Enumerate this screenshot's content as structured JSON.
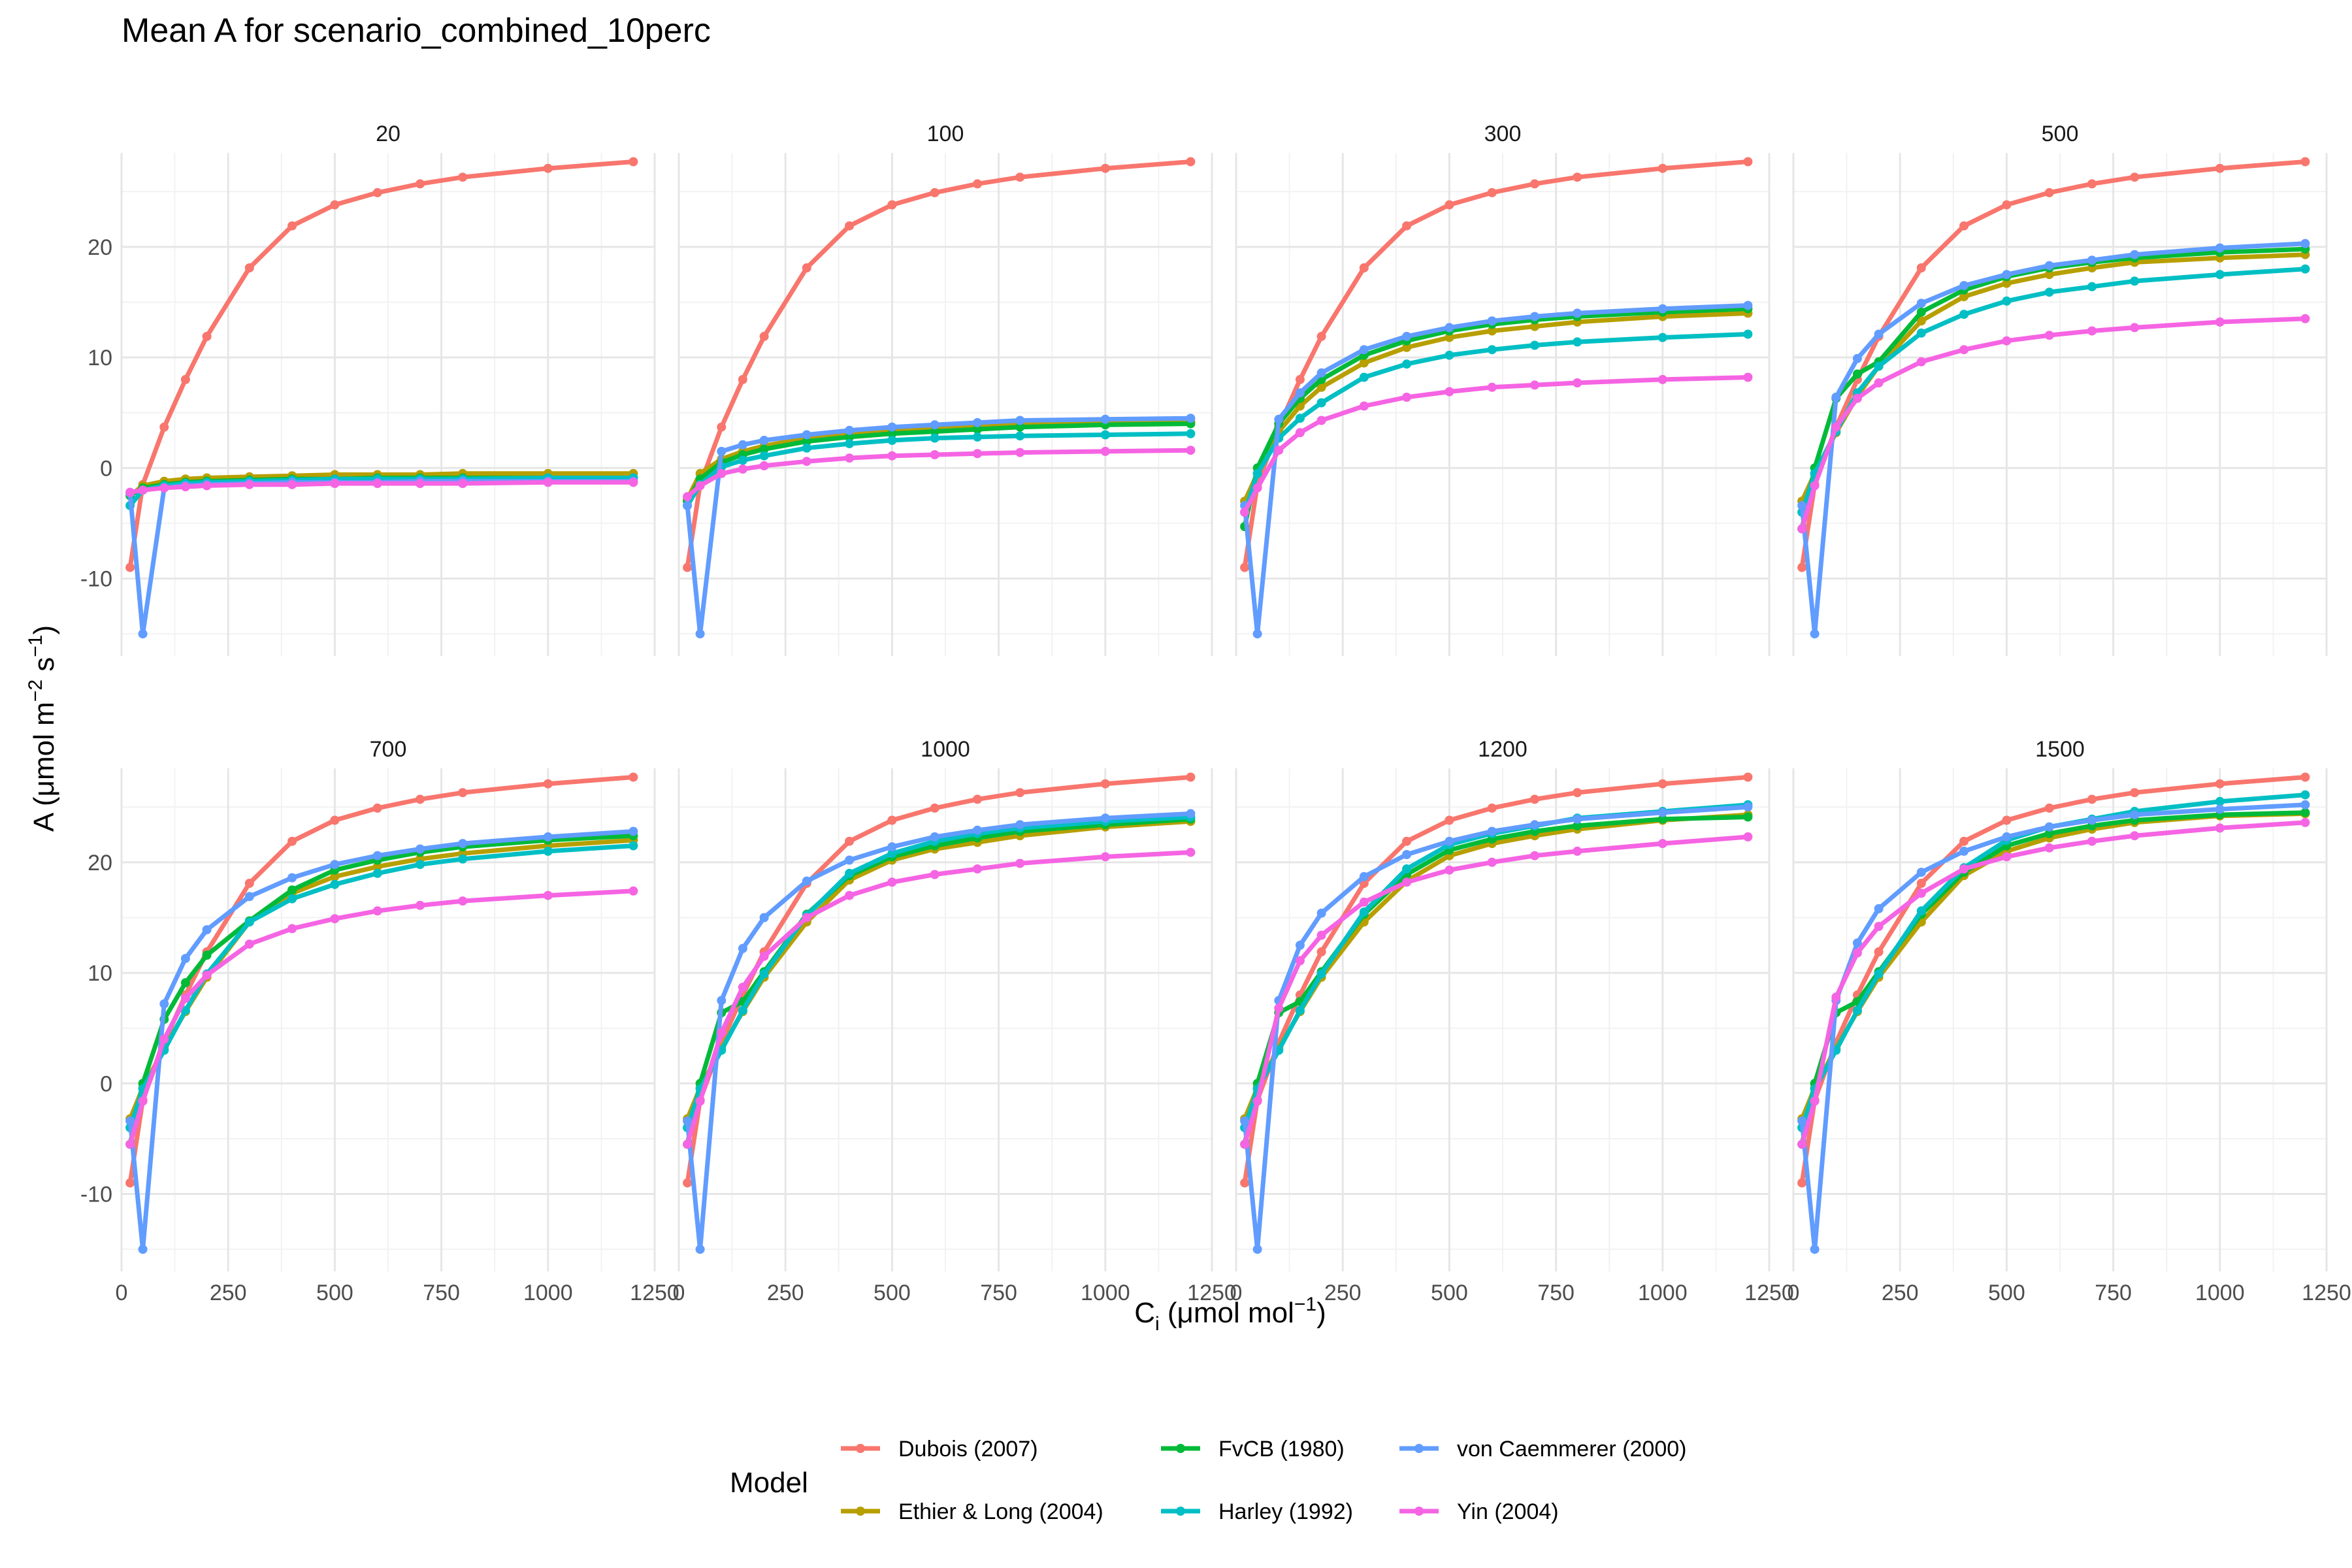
{
  "title": "Mean A for scenario_combined_10perc",
  "legend": {
    "title": "Model"
  },
  "axes": {
    "x_title_main": "C",
    "x_title_sub": "i",
    "x_title_rest": " (μmol mol",
    "x_title_sup": "−1",
    "x_title_end": ")",
    "y_title_main": "A (μmol m",
    "y_title_sup1": "−2",
    "y_title_mid": " s",
    "y_title_sup2": "−1",
    "y_title_end": ")"
  },
  "chart_data": {
    "type": "line",
    "facet_by": "scenario panel",
    "xlim": [
      0,
      1250
    ],
    "ylim": [
      -17,
      28.5
    ],
    "x_ticks": [
      0,
      250,
      500,
      750,
      1000,
      1250
    ],
    "x_tick_labels": [
      "0",
      "250",
      "500",
      "750",
      "1000",
      "1250"
    ],
    "y_ticks": [
      -10,
      0,
      10,
      20
    ],
    "y_tick_labels": [
      "-10",
      "0",
      "10",
      "20"
    ],
    "grid": true,
    "legend_position": "bottom",
    "colors": {
      "Dubois (2007)": "#F8766D",
      "Ethier & Long (2004)": "#B79F00",
      "FvCB (1980)": "#00BA38",
      "Harley (1992)": "#00BFC4",
      "von Caemmerer (2000)": "#619CFF",
      "Yin (2004)": "#F564E3"
    },
    "legend_order": [
      "Dubois (2007)",
      "Ethier & Long (2004)",
      "FvCB (1980)",
      "Harley (1992)",
      "von Caemmerer (2000)",
      "Yin (2004)"
    ],
    "x": [
      20,
      50,
      100,
      150,
      200,
      300,
      400,
      500,
      600,
      700,
      800,
      1000,
      1200
    ],
    "panels": [
      {
        "label": "20",
        "series": [
          {
            "name": "Dubois (2007)",
            "values": [
              -9.0,
              -1.5,
              3.7,
              8.0,
              11.9,
              18.1,
              21.9,
              23.8,
              24.9,
              25.7,
              26.3,
              27.1,
              27.7
            ]
          },
          {
            "name": "Ethier & Long (2004)",
            "values": [
              -2.5,
              -1.6,
              -1.2,
              -1.0,
              -0.9,
              -0.8,
              -0.7,
              -0.6,
              -0.6,
              -0.6,
              -0.5,
              -0.5,
              -0.5
            ]
          },
          {
            "name": "FvCB (1980)",
            "values": [
              -2.5,
              -1.8,
              -1.5,
              -1.3,
              -1.2,
              -1.1,
              -1.0,
              -1.0,
              -0.9,
              -0.9,
              -0.9,
              -0.9,
              -0.9
            ]
          },
          {
            "name": "Harley (1992)",
            "values": [
              -3.4,
              -2.0,
              -1.6,
              -1.4,
              -1.3,
              -1.2,
              -1.1,
              -1.0,
              -1.0,
              -1.0,
              -1.0,
              -0.9,
              -0.9
            ]
          },
          {
            "name": "von Caemmerer (2000)",
            "values": [
              -2.3,
              -15.0,
              -1.8,
              -1.6,
              -1.5,
              -1.4,
              -1.3,
              -1.3,
              -1.3,
              -1.2,
              -1.2,
              -1.2,
              -1.2
            ]
          },
          {
            "name": "Yin (2004)",
            "values": [
              -2.2,
              -2.0,
              -1.8,
              -1.7,
              -1.6,
              -1.5,
              -1.5,
              -1.4,
              -1.4,
              -1.4,
              -1.4,
              -1.3,
              -1.3
            ]
          }
        ]
      },
      {
        "label": "100",
        "series": [
          {
            "name": "Dubois (2007)",
            "values": [
              -9.0,
              -1.5,
              3.7,
              8.0,
              11.9,
              18.1,
              21.9,
              23.8,
              24.9,
              25.7,
              26.3,
              27.1,
              27.7
            ]
          },
          {
            "name": "Ethier & Long (2004)",
            "values": [
              -2.8,
              -0.5,
              0.8,
              1.5,
              2.0,
              2.7,
              3.1,
              3.4,
              3.6,
              3.8,
              3.9,
              4.1,
              4.2
            ]
          },
          {
            "name": "FvCB (1980)",
            "values": [
              -3.0,
              -1.0,
              0.5,
              1.2,
              1.7,
              2.4,
              2.8,
              3.1,
              3.3,
              3.5,
              3.7,
              3.9,
              4.0
            ]
          },
          {
            "name": "Harley (1992)",
            "values": [
              -3.4,
              -1.5,
              0.1,
              0.7,
              1.1,
              1.8,
              2.2,
              2.5,
              2.7,
              2.8,
              2.9,
              3.0,
              3.1
            ]
          },
          {
            "name": "von Caemmerer (2000)",
            "values": [
              -3.4,
              -15.0,
              1.5,
              2.1,
              2.5,
              3.0,
              3.4,
              3.7,
              3.9,
              4.1,
              4.3,
              4.4,
              4.5
            ]
          },
          {
            "name": "Yin (2004)",
            "values": [
              -2.6,
              -1.6,
              -0.5,
              -0.1,
              0.2,
              0.6,
              0.9,
              1.1,
              1.2,
              1.3,
              1.4,
              1.5,
              1.6
            ]
          }
        ]
      },
      {
        "label": "300",
        "series": [
          {
            "name": "Dubois (2007)",
            "values": [
              -9.0,
              -1.5,
              3.7,
              8.0,
              11.9,
              18.1,
              21.9,
              23.8,
              24.9,
              25.7,
              26.3,
              27.1,
              27.7
            ]
          },
          {
            "name": "Ethier & Long (2004)",
            "values": [
              -3.0,
              -0.5,
              3.3,
              5.6,
              7.3,
              9.5,
              10.9,
              11.8,
              12.4,
              12.8,
              13.2,
              13.7,
              14.0
            ]
          },
          {
            "name": "FvCB (1980)",
            "values": [
              -5.3,
              0.0,
              4.0,
              6.3,
              8.0,
              10.2,
              11.5,
              12.4,
              13.0,
              13.4,
              13.7,
              14.1,
              14.4
            ]
          },
          {
            "name": "Harley (1992)",
            "values": [
              -4.0,
              -0.5,
              2.7,
              4.5,
              5.9,
              8.2,
              9.4,
              10.2,
              10.7,
              11.1,
              11.4,
              11.8,
              12.1
            ]
          },
          {
            "name": "von Caemmerer (2000)",
            "values": [
              -3.4,
              -15.0,
              4.4,
              6.8,
              8.6,
              10.7,
              11.9,
              12.7,
              13.3,
              13.7,
              14.0,
              14.4,
              14.7
            ]
          },
          {
            "name": "Yin (2004)",
            "values": [
              -4.0,
              -1.8,
              1.6,
              3.2,
              4.3,
              5.6,
              6.4,
              6.9,
              7.3,
              7.5,
              7.7,
              8.0,
              8.2
            ]
          }
        ]
      },
      {
        "label": "500",
        "series": [
          {
            "name": "Dubois (2007)",
            "values": [
              -9.0,
              -1.5,
              3.7,
              8.0,
              11.9,
              18.1,
              21.9,
              23.8,
              24.9,
              25.7,
              26.3,
              27.1,
              27.7
            ]
          },
          {
            "name": "Ethier & Long (2004)",
            "values": [
              -3.0,
              -0.5,
              3.2,
              6.5,
              9.2,
              13.3,
              15.5,
              16.7,
              17.5,
              18.1,
              18.6,
              19.0,
              19.3
            ]
          },
          {
            "name": "FvCB (1980)",
            "values": [
              -5.5,
              0.0,
              6.3,
              8.5,
              9.6,
              14.1,
              16.1,
              17.3,
              18.1,
              18.6,
              19.0,
              19.5,
              19.8
            ]
          },
          {
            "name": "Harley (1992)",
            "values": [
              -4.0,
              -0.5,
              3.3,
              6.8,
              9.2,
              12.2,
              13.9,
              15.1,
              15.9,
              16.4,
              16.9,
              17.5,
              18.0
            ]
          },
          {
            "name": "von Caemmerer (2000)",
            "values": [
              -3.4,
              -15.0,
              6.4,
              9.9,
              12.1,
              14.9,
              16.5,
              17.5,
              18.3,
              18.8,
              19.3,
              19.9,
              20.3
            ]
          },
          {
            "name": "Yin (2004)",
            "values": [
              -5.5,
              -1.6,
              3.7,
              6.3,
              7.7,
              9.6,
              10.7,
              11.5,
              12.0,
              12.4,
              12.7,
              13.2,
              13.5
            ]
          }
        ]
      },
      {
        "label": "700",
        "series": [
          {
            "name": "Dubois (2007)",
            "values": [
              -9.0,
              -1.5,
              3.7,
              8.0,
              11.9,
              18.1,
              21.9,
              23.8,
              24.9,
              25.7,
              26.3,
              27.1,
              27.7
            ]
          },
          {
            "name": "Ethier & Long (2004)",
            "values": [
              -3.2,
              -0.4,
              3.2,
              6.5,
              9.6,
              14.6,
              17.2,
              18.7,
              19.6,
              20.3,
              20.8,
              21.5,
              22.0
            ]
          },
          {
            "name": "FvCB (1980)",
            "values": [
              -5.5,
              0.0,
              5.8,
              9.1,
              11.6,
              14.7,
              17.5,
              19.3,
              20.2,
              20.9,
              21.4,
              22.0,
              22.4
            ]
          },
          {
            "name": "Harley (1992)",
            "values": [
              -4.0,
              -0.5,
              3.0,
              6.6,
              9.9,
              14.6,
              16.7,
              18.0,
              19.0,
              19.8,
              20.3,
              21.0,
              21.5
            ]
          },
          {
            "name": "von Caemmerer (2000)",
            "values": [
              -3.4,
              -15.0,
              7.2,
              11.3,
              13.9,
              16.9,
              18.6,
              19.8,
              20.6,
              21.2,
              21.7,
              22.3,
              22.8
            ]
          },
          {
            "name": "Yin (2004)",
            "values": [
              -5.5,
              -1.6,
              4.0,
              7.7,
              9.8,
              12.6,
              14.0,
              14.9,
              15.6,
              16.1,
              16.5,
              17.0,
              17.4
            ]
          }
        ]
      },
      {
        "label": "1000",
        "series": [
          {
            "name": "Dubois (2007)",
            "values": [
              -9.0,
              -1.5,
              3.7,
              8.0,
              11.9,
              18.1,
              21.9,
              23.8,
              24.9,
              25.7,
              26.3,
              27.1,
              27.7
            ]
          },
          {
            "name": "Ethier & Long (2004)",
            "values": [
              -3.2,
              -0.4,
              3.2,
              6.5,
              9.6,
              14.6,
              18.4,
              20.2,
              21.2,
              21.8,
              22.4,
              23.2,
              23.7
            ]
          },
          {
            "name": "FvCB (1980)",
            "values": [
              -5.5,
              0.0,
              6.4,
              7.4,
              10.1,
              15.3,
              18.8,
              20.5,
              21.5,
              22.2,
              22.8,
              23.4,
              23.9
            ]
          },
          {
            "name": "Harley (1992)",
            "values": [
              -4.0,
              -0.5,
              3.0,
              6.6,
              9.9,
              15.2,
              19.0,
              20.8,
              21.9,
              22.6,
              23.1,
              23.7,
              24.1
            ]
          },
          {
            "name": "von Caemmerer (2000)",
            "values": [
              -3.4,
              -15.0,
              7.5,
              12.2,
              15.0,
              18.3,
              20.2,
              21.4,
              22.3,
              22.9,
              23.4,
              24.0,
              24.4
            ]
          },
          {
            "name": "Yin (2004)",
            "values": [
              -5.5,
              -1.6,
              4.6,
              8.7,
              11.5,
              15.0,
              17.0,
              18.2,
              18.9,
              19.4,
              19.9,
              20.5,
              20.9
            ]
          }
        ]
      },
      {
        "label": "1200",
        "series": [
          {
            "name": "Dubois (2007)",
            "values": [
              -9.0,
              -1.5,
              3.7,
              8.0,
              11.9,
              18.1,
              21.9,
              23.8,
              24.9,
              25.7,
              26.3,
              27.1,
              27.7
            ]
          },
          {
            "name": "Ethier & Long (2004)",
            "values": [
              -3.2,
              -0.4,
              3.2,
              6.5,
              9.6,
              14.6,
              18.3,
              20.6,
              21.7,
              22.4,
              23.0,
              23.8,
              24.3
            ]
          },
          {
            "name": "FvCB (1980)",
            "values": [
              -5.5,
              0.0,
              6.4,
              7.4,
              10.1,
              15.3,
              18.9,
              21.1,
              22.1,
              22.8,
              23.3,
              23.9,
              24.1
            ]
          },
          {
            "name": "Harley (1992)",
            "values": [
              -4.0,
              -0.5,
              3.0,
              6.6,
              9.9,
              15.5,
              19.4,
              21.6,
              22.6,
              23.3,
              24.0,
              24.6,
              25.2
            ]
          },
          {
            "name": "von Caemmerer (2000)",
            "values": [
              -3.4,
              -15.0,
              7.5,
              12.5,
              15.4,
              18.7,
              20.7,
              21.9,
              22.8,
              23.4,
              23.9,
              24.5,
              25.0
            ]
          },
          {
            "name": "Yin (2004)",
            "values": [
              -5.5,
              -1.6,
              6.8,
              11.1,
              13.4,
              16.4,
              18.2,
              19.3,
              20.0,
              20.6,
              21.0,
              21.7,
              22.3
            ]
          }
        ]
      },
      {
        "label": "1500",
        "series": [
          {
            "name": "Dubois (2007)",
            "values": [
              -9.0,
              -1.5,
              3.7,
              8.0,
              11.9,
              18.1,
              21.9,
              23.8,
              24.9,
              25.7,
              26.3,
              27.1,
              27.7
            ]
          },
          {
            "name": "Ethier & Long (2004)",
            "values": [
              -3.2,
              -0.4,
              3.2,
              6.5,
              9.6,
              14.6,
              18.8,
              21.0,
              22.2,
              23.0,
              23.6,
              24.2,
              24.4
            ]
          },
          {
            "name": "FvCB (1980)",
            "values": [
              -5.5,
              0.0,
              6.4,
              7.4,
              10.1,
              15.3,
              19.1,
              21.5,
              22.6,
              23.3,
              23.8,
              24.3,
              24.5
            ]
          },
          {
            "name": "Harley (1992)",
            "values": [
              -4.0,
              -0.5,
              3.0,
              6.6,
              9.9,
              15.6,
              19.5,
              22.0,
              23.2,
              23.9,
              24.6,
              25.5,
              26.1
            ]
          },
          {
            "name": "von Caemmerer (2000)",
            "values": [
              -3.4,
              -15.0,
              7.5,
              12.7,
              15.8,
              19.1,
              21.0,
              22.3,
              23.2,
              23.8,
              24.3,
              24.8,
              25.2
            ]
          },
          {
            "name": "Yin (2004)",
            "values": [
              -5.5,
              -1.6,
              7.8,
              11.8,
              14.2,
              17.2,
              19.4,
              20.5,
              21.3,
              21.9,
              22.4,
              23.1,
              23.6
            ]
          }
        ]
      }
    ]
  }
}
